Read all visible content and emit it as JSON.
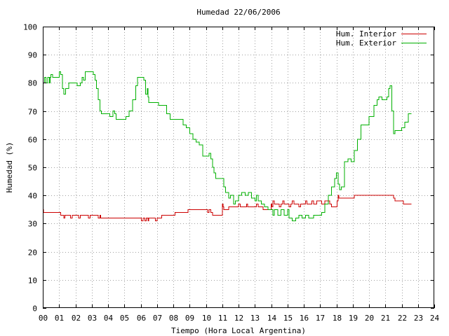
{
  "chart_data": {
    "type": "line",
    "title": "Humedad 22/06/2006",
    "xlabel": "Tiempo (Hora Local Argentina)",
    "ylabel": "Humedad (%)",
    "xlim": [
      0,
      24
    ],
    "ylim": [
      0,
      100
    ],
    "grid": true,
    "legend_position": "top-right",
    "x_ticks": [
      "00",
      "01",
      "02",
      "03",
      "04",
      "05",
      "06",
      "07",
      "08",
      "09",
      "10",
      "11",
      "12",
      "13",
      "14",
      "15",
      "16",
      "17",
      "18",
      "19",
      "20",
      "21",
      "22",
      "23",
      "24"
    ],
    "y_ticks": [
      "0",
      "10",
      "20",
      "30",
      "40",
      "50",
      "60",
      "70",
      "80",
      "90",
      "100"
    ],
    "colors": {
      "interior": "#cc0000",
      "exterior": "#00b000",
      "grid": "#a0a0a0",
      "axis": "#000000",
      "background": "#ffffff"
    },
    "series": [
      {
        "name": "Hum. Interior",
        "color": "#cc0000",
        "points": [
          [
            0.0,
            35
          ],
          [
            0.05,
            34
          ],
          [
            1.0,
            34
          ],
          [
            1.1,
            33
          ],
          [
            1.2,
            33
          ],
          [
            1.3,
            32
          ],
          [
            1.35,
            33
          ],
          [
            1.6,
            33
          ],
          [
            1.7,
            32
          ],
          [
            1.8,
            33
          ],
          [
            2.1,
            33
          ],
          [
            2.2,
            32
          ],
          [
            2.3,
            33
          ],
          [
            2.7,
            33
          ],
          [
            2.8,
            32
          ],
          [
            2.9,
            33
          ],
          [
            3.3,
            33
          ],
          [
            3.4,
            32
          ],
          [
            3.5,
            33
          ],
          [
            3.55,
            32
          ],
          [
            6.0,
            32
          ],
          [
            6.05,
            31
          ],
          [
            6.15,
            32
          ],
          [
            6.25,
            31
          ],
          [
            6.35,
            32
          ],
          [
            6.45,
            31
          ],
          [
            6.5,
            32
          ],
          [
            6.8,
            32
          ],
          [
            6.9,
            31
          ],
          [
            7.0,
            32
          ],
          [
            7.2,
            32
          ],
          [
            7.3,
            33
          ],
          [
            8.0,
            33
          ],
          [
            8.1,
            34
          ],
          [
            8.8,
            34
          ],
          [
            8.9,
            35
          ],
          [
            10.0,
            35
          ],
          [
            10.1,
            34
          ],
          [
            10.2,
            35
          ],
          [
            10.3,
            34
          ],
          [
            10.4,
            33
          ],
          [
            10.9,
            33
          ],
          [
            11.0,
            37
          ],
          [
            11.05,
            36
          ],
          [
            11.1,
            35
          ],
          [
            11.3,
            35
          ],
          [
            11.4,
            36
          ],
          [
            11.9,
            36
          ],
          [
            12.0,
            37
          ],
          [
            12.1,
            36
          ],
          [
            12.4,
            36
          ],
          [
            12.5,
            37
          ],
          [
            12.55,
            36
          ],
          [
            13.0,
            36
          ],
          [
            13.1,
            37
          ],
          [
            13.2,
            36
          ],
          [
            13.4,
            36
          ],
          [
            13.5,
            35
          ],
          [
            13.9,
            35
          ],
          [
            14.0,
            37
          ],
          [
            14.05,
            36
          ],
          [
            14.1,
            38
          ],
          [
            14.2,
            37
          ],
          [
            14.4,
            37
          ],
          [
            14.5,
            36
          ],
          [
            14.6,
            37
          ],
          [
            14.7,
            38
          ],
          [
            14.8,
            37
          ],
          [
            15.0,
            37
          ],
          [
            15.1,
            36
          ],
          [
            15.2,
            37
          ],
          [
            15.3,
            38
          ],
          [
            15.4,
            37
          ],
          [
            15.6,
            37
          ],
          [
            15.7,
            36
          ],
          [
            15.8,
            37
          ],
          [
            16.0,
            37
          ],
          [
            16.1,
            38
          ],
          [
            16.2,
            37
          ],
          [
            16.4,
            37
          ],
          [
            16.5,
            38
          ],
          [
            16.6,
            37
          ],
          [
            16.8,
            38
          ],
          [
            17.0,
            38
          ],
          [
            17.1,
            37
          ],
          [
            17.3,
            38
          ],
          [
            17.5,
            38
          ],
          [
            17.6,
            37
          ],
          [
            17.7,
            36
          ],
          [
            18.0,
            36
          ],
          [
            18.05,
            38
          ],
          [
            18.1,
            40
          ],
          [
            18.15,
            39
          ],
          [
            19.0,
            39
          ],
          [
            19.1,
            40
          ],
          [
            21.4,
            40
          ],
          [
            21.5,
            39
          ],
          [
            21.6,
            38
          ],
          [
            22.0,
            38
          ],
          [
            22.1,
            37
          ],
          [
            22.6,
            37
          ]
        ]
      },
      {
        "name": "Hum. Exterior",
        "color": "#00b000",
        "points": [
          [
            0.0,
            80
          ],
          [
            0.1,
            82
          ],
          [
            0.2,
            80
          ],
          [
            0.3,
            82
          ],
          [
            0.4,
            80
          ],
          [
            0.45,
            82
          ],
          [
            0.5,
            83
          ],
          [
            0.6,
            82
          ],
          [
            0.9,
            82
          ],
          [
            1.0,
            84
          ],
          [
            1.1,
            83
          ],
          [
            1.2,
            78
          ],
          [
            1.3,
            76
          ],
          [
            1.4,
            78
          ],
          [
            1.6,
            80
          ],
          [
            2.0,
            80
          ],
          [
            2.1,
            79
          ],
          [
            2.3,
            80
          ],
          [
            2.4,
            82
          ],
          [
            2.5,
            81
          ],
          [
            2.6,
            84
          ],
          [
            2.8,
            84
          ],
          [
            3.0,
            84
          ],
          [
            3.1,
            83
          ],
          [
            3.2,
            81
          ],
          [
            3.3,
            78
          ],
          [
            3.4,
            74
          ],
          [
            3.5,
            70
          ],
          [
            3.6,
            69
          ],
          [
            4.0,
            69
          ],
          [
            4.1,
            68
          ],
          [
            4.3,
            70
          ],
          [
            4.4,
            69
          ],
          [
            4.5,
            67
          ],
          [
            5.0,
            67
          ],
          [
            5.1,
            68
          ],
          [
            5.3,
            70
          ],
          [
            5.5,
            74
          ],
          [
            5.7,
            79
          ],
          [
            5.8,
            82
          ],
          [
            6.0,
            82
          ],
          [
            6.2,
            81
          ],
          [
            6.3,
            76
          ],
          [
            6.4,
            78
          ],
          [
            6.45,
            75
          ],
          [
            6.5,
            73
          ],
          [
            7.0,
            73
          ],
          [
            7.1,
            72
          ],
          [
            7.5,
            72
          ],
          [
            7.6,
            69
          ],
          [
            7.8,
            67
          ],
          [
            8.5,
            67
          ],
          [
            8.6,
            65
          ],
          [
            8.8,
            64
          ],
          [
            9.0,
            62
          ],
          [
            9.2,
            60
          ],
          [
            9.4,
            59
          ],
          [
            9.6,
            58
          ],
          [
            9.8,
            54
          ],
          [
            10.0,
            54
          ],
          [
            10.2,
            55
          ],
          [
            10.3,
            53
          ],
          [
            10.4,
            50
          ],
          [
            10.5,
            48
          ],
          [
            10.6,
            46
          ],
          [
            11.0,
            46
          ],
          [
            11.1,
            43
          ],
          [
            11.2,
            41
          ],
          [
            11.4,
            39
          ],
          [
            11.5,
            40
          ],
          [
            11.7,
            37
          ],
          [
            11.8,
            38
          ],
          [
            12.0,
            40
          ],
          [
            12.2,
            41
          ],
          [
            12.4,
            40
          ],
          [
            12.6,
            41
          ],
          [
            12.8,
            39
          ],
          [
            13.0,
            38
          ],
          [
            13.1,
            40
          ],
          [
            13.2,
            38
          ],
          [
            13.4,
            37
          ],
          [
            13.6,
            36
          ],
          [
            13.8,
            35
          ],
          [
            14.0,
            35
          ],
          [
            14.1,
            33
          ],
          [
            14.2,
            35
          ],
          [
            14.4,
            33
          ],
          [
            14.6,
            35
          ],
          [
            14.8,
            33
          ],
          [
            15.0,
            35
          ],
          [
            15.1,
            32
          ],
          [
            15.3,
            31
          ],
          [
            15.5,
            32
          ],
          [
            15.7,
            33
          ],
          [
            15.9,
            32
          ],
          [
            16.1,
            33
          ],
          [
            16.3,
            32
          ],
          [
            16.6,
            33
          ],
          [
            17.0,
            33
          ],
          [
            17.1,
            34
          ],
          [
            17.3,
            37
          ],
          [
            17.5,
            40
          ],
          [
            17.7,
            43
          ],
          [
            17.9,
            46
          ],
          [
            18.0,
            48
          ],
          [
            18.1,
            44
          ],
          [
            18.2,
            42
          ],
          [
            18.3,
            43
          ],
          [
            18.5,
            52
          ],
          [
            18.7,
            53
          ],
          [
            18.9,
            52
          ],
          [
            19.1,
            56
          ],
          [
            19.3,
            60
          ],
          [
            19.5,
            65
          ],
          [
            19.9,
            65
          ],
          [
            20.0,
            68
          ],
          [
            20.3,
            72
          ],
          [
            20.5,
            74
          ],
          [
            20.6,
            75
          ],
          [
            20.8,
            74
          ],
          [
            21.1,
            75
          ],
          [
            21.2,
            78
          ],
          [
            21.3,
            79
          ],
          [
            21.4,
            70
          ],
          [
            21.5,
            62
          ],
          [
            21.6,
            63
          ],
          [
            22.0,
            64
          ],
          [
            22.2,
            66
          ],
          [
            22.4,
            69
          ],
          [
            22.6,
            69
          ]
        ]
      }
    ]
  }
}
